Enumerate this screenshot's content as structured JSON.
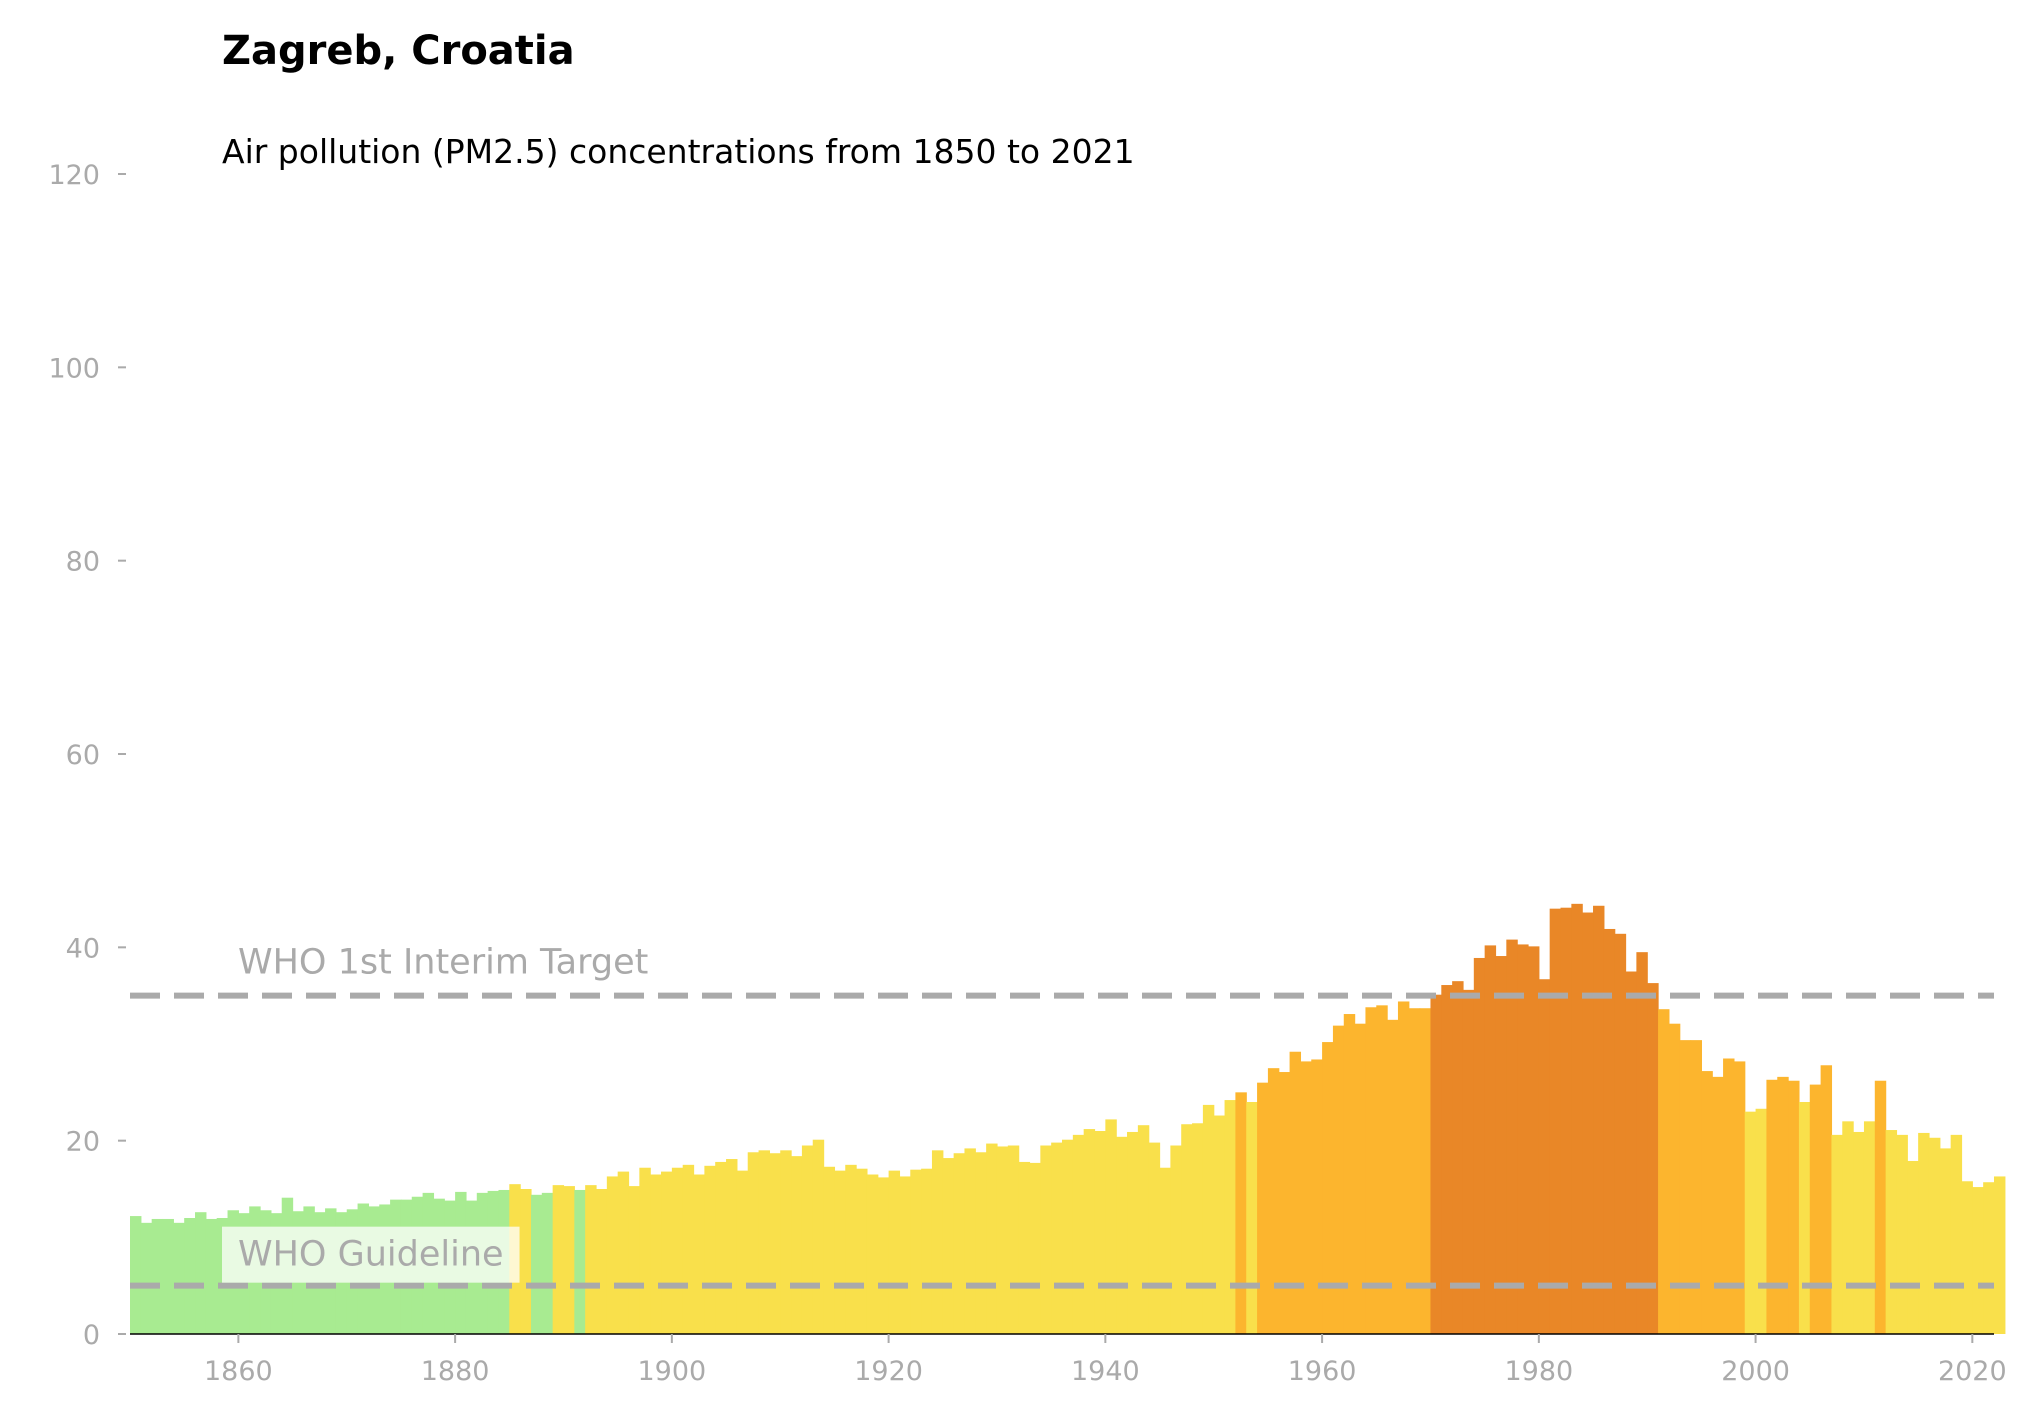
{
  "title": "Zagreb, Croatia",
  "subtitle": "Air pollution (PM2.5) concentrations from 1850 to 2021",
  "chart_data": {
    "type": "bar",
    "title": "Zagreb, Croatia",
    "subtitle": "Air pollution (PM2.5) concentrations from 1850 to 2021",
    "xlabel": "",
    "ylabel": "",
    "x_start": 1850,
    "x_end": 2021,
    "xlim": [
      1850,
      2022
    ],
    "ylim": [
      0,
      120
    ],
    "x_ticks": [
      1860,
      1880,
      1900,
      1920,
      1940,
      1960,
      1980,
      2000,
      2020
    ],
    "y_ticks": [
      0,
      20,
      40,
      60,
      80,
      100,
      120
    ],
    "values": [
      12.2,
      11.5,
      11.9,
      11.9,
      11.5,
      12.0,
      12.6,
      11.9,
      12.0,
      12.8,
      12.5,
      13.2,
      12.8,
      12.5,
      14.1,
      12.7,
      13.2,
      12.6,
      13.0,
      12.6,
      12.9,
      13.5,
      13.2,
      13.4,
      13.9,
      13.9,
      14.2,
      14.6,
      14.0,
      13.8,
      14.7,
      13.8,
      14.6,
      14.8,
      14.9,
      15.5,
      15.0,
      14.4,
      14.6,
      15.4,
      15.3,
      14.9,
      15.4,
      15.0,
      16.3,
      16.8,
      15.3,
      17.2,
      16.5,
      16.8,
      17.2,
      17.5,
      16.5,
      17.4,
      17.8,
      18.1,
      16.9,
      18.8,
      19.0,
      18.7,
      19.0,
      18.4,
      19.5,
      20.1,
      17.3,
      16.9,
      17.5,
      17.1,
      16.5,
      16.2,
      16.9,
      16.3,
      17.0,
      17.1,
      19.0,
      18.2,
      18.7,
      19.2,
      18.8,
      19.7,
      19.4,
      19.5,
      17.8,
      17.7,
      19.5,
      19.8,
      20.1,
      20.6,
      21.2,
      21.0,
      22.2,
      20.4,
      20.9,
      21.6,
      19.8,
      17.2,
      19.5,
      21.7,
      21.8,
      23.7,
      22.6,
      24.2,
      25.0,
      24.0,
      26.0,
      27.5,
      27.1,
      29.2,
      28.2,
      28.4,
      30.2,
      31.9,
      33.1,
      32.1,
      33.8,
      34.0,
      32.5,
      34.4,
      33.7,
      33.7,
      35.1,
      36.1,
      36.5,
      35.6,
      38.9,
      40.2,
      39.1,
      40.8,
      40.3,
      40.1,
      36.7,
      44.0,
      44.1,
      44.5,
      43.6,
      44.3,
      41.9,
      41.4,
      37.5,
      39.5,
      36.3,
      33.6,
      32.1,
      30.4,
      30.4,
      27.2,
      26.6,
      28.5,
      28.2,
      23.0,
      23.3,
      26.3,
      26.6,
      26.2,
      24.0,
      25.8,
      27.8,
      20.6,
      22.0,
      20.9,
      22.0,
      26.2,
      21.1,
      20.6,
      17.9,
      20.8,
      20.3,
      19.2,
      20.6,
      15.8,
      15.2,
      15.7,
      16.3
    ],
    "color_thresholds": [
      10,
      15,
      25,
      35
    ],
    "colors": {
      "good": "#a8eb91",
      "moderate": "#f9e04b",
      "elevated": "#fcb52e",
      "high": "#e98727",
      "reference_line": "#aaaaaa",
      "axis": "#000000"
    },
    "reference_lines": [
      {
        "label": "WHO 1st Interim Target",
        "value": 35
      },
      {
        "label": "WHO Guideline",
        "value": 5
      }
    ]
  }
}
